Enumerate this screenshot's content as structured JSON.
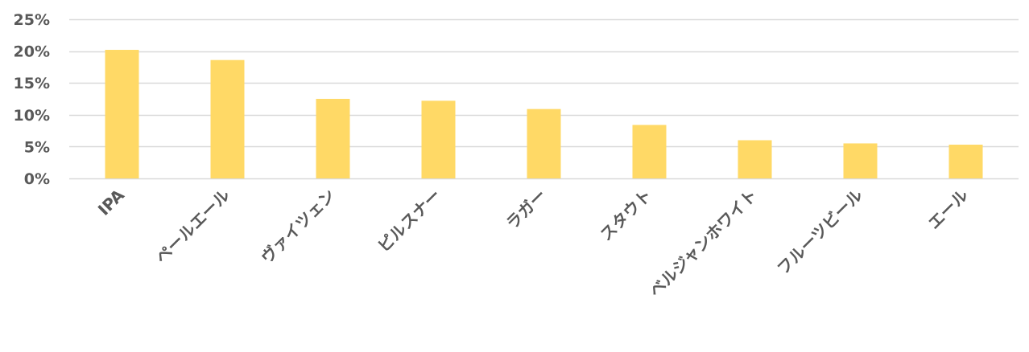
{
  "chart_data": {
    "type": "bar",
    "categories": [
      "IPA",
      "ペールエール",
      "ヴァイツェン",
      "ピルスナー",
      "ラガー",
      "スタウト",
      "ベルジャンホワイト",
      "フルーツビール",
      "エール"
    ],
    "values": [
      20.2,
      18.6,
      12.5,
      12.2,
      10.9,
      8.4,
      6.0,
      5.5,
      5.3
    ],
    "title": "",
    "xlabel": "",
    "ylabel": "",
    "ylim": [
      0,
      25
    ],
    "yticks": [
      0,
      5,
      10,
      15,
      20,
      25
    ],
    "ytick_labels": [
      "0%",
      "5%",
      "10%",
      "15%",
      "20%",
      "25%"
    ],
    "grid": true,
    "legend": "none",
    "colors": {
      "bar": "#FFD966",
      "grid": "#D9D9D9",
      "text": "#595959"
    }
  }
}
